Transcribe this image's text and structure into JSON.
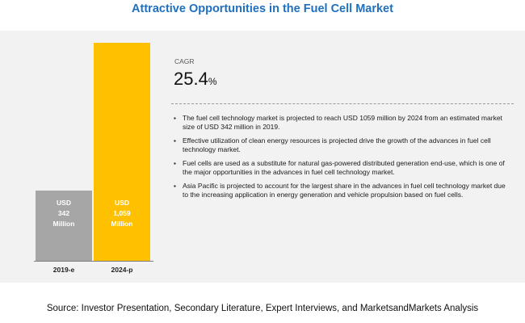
{
  "title": "Attractive Opportunities in the Fuel Cell Market",
  "chart_data": {
    "type": "bar",
    "categories": [
      "2019-e",
      "2024-p"
    ],
    "values": [
      342,
      1059
    ],
    "bar_labels": [
      [
        "USD",
        "342",
        "Million"
      ],
      [
        "USD",
        "1,059",
        "Million"
      ]
    ],
    "colors": [
      "#a6a6a6",
      "#ffc000"
    ],
    "ylim": [
      0,
      1100
    ]
  },
  "cagr": {
    "label": "CAGR",
    "value": "25.4",
    "unit": "%"
  },
  "bullets": [
    "The fuel cell technology market is projected to reach USD 1059 million by 2024 from an estimated market size of USD 342 million in 2019.",
    "Effective utilization of clean energy resources is projected drive the growth of the advances in fuel cell technology market.",
    "Fuel cells are used as a substitute for natural gas-powered distributed generation end-use, which is one of the major opportunities in the advances in fuel cell technology market.",
    "Asia Pacific is projected to account for the largest share in the advances in fuel cell technology market due to the increasing application in energy generation and vehicle propulsion based on fuel cells."
  ],
  "source": "Source: Investor Presentation, Secondary Literature, Expert Interviews, and MarketsandMarkets Analysis"
}
